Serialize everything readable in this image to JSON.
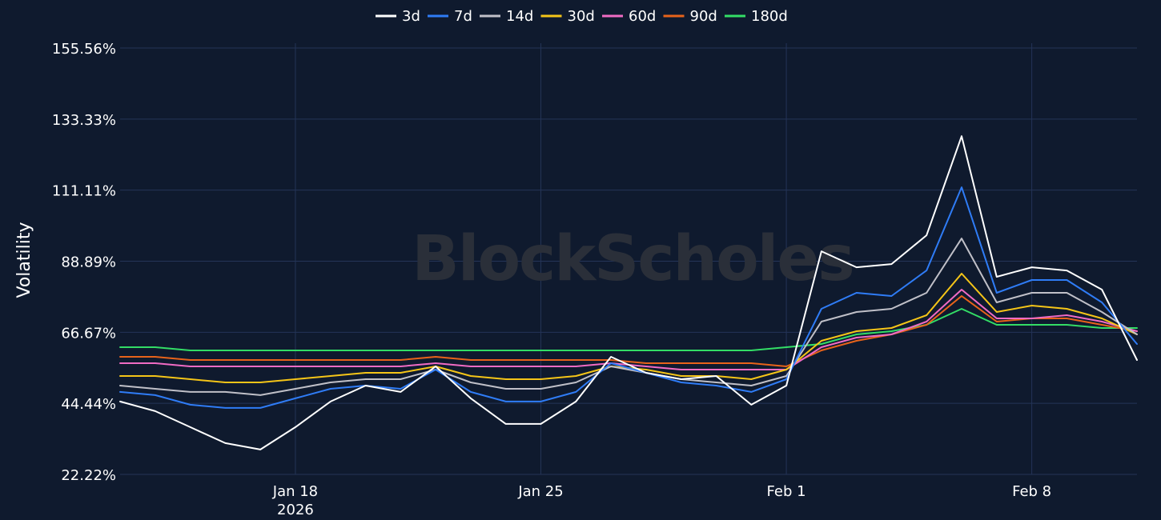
{
  "chart_data": {
    "type": "line",
    "watermark": "BlockScholes",
    "ylabel": "Volatility",
    "xlabel": "",
    "grid": true,
    "legend_position": "top-center",
    "colors": {
      "background": "#0f1a2e",
      "grid": "#243457",
      "text": "#ffffff",
      "watermark": "#2a2f39"
    },
    "y_ticks": [
      "22.22%",
      "44.44%",
      "66.67%",
      "88.89%",
      "111.11%",
      "133.33%",
      "155.56%"
    ],
    "y_tick_values": [
      22.22,
      44.44,
      66.67,
      88.89,
      111.11,
      133.33,
      155.56
    ],
    "ylim": [
      22.22,
      155.56
    ],
    "x_ticks": [
      {
        "date": "2026-01-18",
        "label": "Jan 18",
        "sublabel": "2026"
      },
      {
        "date": "2026-01-25",
        "label": "Jan 25",
        "sublabel": ""
      },
      {
        "date": "2026-02-01",
        "label": "Feb 1",
        "sublabel": ""
      },
      {
        "date": "2026-02-08",
        "label": "Feb 8",
        "sublabel": ""
      }
    ],
    "xlim": [
      "2026-01-13",
      "2026-02-11"
    ],
    "x": [
      "2026-01-13",
      "2026-01-14",
      "2026-01-15",
      "2026-01-16",
      "2026-01-17",
      "2026-01-18",
      "2026-01-19",
      "2026-01-20",
      "2026-01-21",
      "2026-01-22",
      "2026-01-23",
      "2026-01-24",
      "2026-01-25",
      "2026-01-26",
      "2026-01-27",
      "2026-01-28",
      "2026-01-29",
      "2026-01-30",
      "2026-01-31",
      "2026-02-01",
      "2026-02-02",
      "2026-02-03",
      "2026-02-04",
      "2026-02-05",
      "2026-02-06",
      "2026-02-07",
      "2026-02-08",
      "2026-02-09",
      "2026-02-10",
      "2026-02-11"
    ],
    "series": [
      {
        "name": "3d",
        "color": "#ffffff",
        "values": [
          45,
          42,
          37,
          32,
          30,
          37,
          45,
          50,
          48,
          56,
          46,
          38,
          38,
          45,
          59,
          54,
          52,
          53,
          44,
          50,
          92,
          87,
          88,
          97,
          128,
          84,
          87,
          86,
          80,
          58
        ]
      },
      {
        "name": "7d",
        "color": "#2f7cf6",
        "values": [
          48,
          47,
          44,
          43,
          43,
          46,
          49,
          50,
          49,
          55,
          48,
          45,
          45,
          48,
          57,
          54,
          51,
          50,
          48,
          52,
          74,
          79,
          78,
          86,
          112,
          79,
          83,
          83,
          76,
          63
        ]
      },
      {
        "name": "14d",
        "color": "#c0c0c8",
        "values": [
          50,
          49,
          48,
          48,
          47,
          49,
          51,
          52,
          52,
          55,
          51,
          49,
          49,
          51,
          56,
          54,
          52,
          51,
          50,
          53,
          70,
          73,
          74,
          79,
          96,
          76,
          79,
          79,
          73,
          66
        ]
      },
      {
        "name": "30d",
        "color": "#f5c518",
        "values": [
          53,
          53,
          52,
          51,
          51,
          52,
          53,
          54,
          54,
          56,
          53,
          52,
          52,
          53,
          56,
          55,
          53,
          53,
          52,
          55,
          64,
          67,
          68,
          72,
          85,
          73,
          75,
          74,
          71,
          66
        ]
      },
      {
        "name": "60d",
        "color": "#f06bc4",
        "values": [
          57,
          57,
          56,
          56,
          56,
          56,
          56,
          56,
          56,
          57,
          56,
          56,
          56,
          56,
          57,
          56,
          55,
          55,
          55,
          55,
          62,
          65,
          66,
          70,
          80,
          71,
          71,
          72,
          70,
          67
        ]
      },
      {
        "name": "90d",
        "color": "#e8631a",
        "values": [
          59,
          59,
          58,
          58,
          58,
          58,
          58,
          58,
          58,
          59,
          58,
          58,
          58,
          58,
          58,
          57,
          57,
          57,
          57,
          56,
          61,
          64,
          66,
          69,
          78,
          70,
          71,
          71,
          69,
          67
        ]
      },
      {
        "name": "180d",
        "color": "#33dd66",
        "values": [
          62,
          62,
          61,
          61,
          61,
          61,
          61,
          61,
          61,
          61,
          61,
          61,
          61,
          61,
          61,
          61,
          61,
          61,
          61,
          62,
          63,
          66,
          67,
          69,
          74,
          69,
          69,
          69,
          68,
          68
        ]
      }
    ]
  }
}
